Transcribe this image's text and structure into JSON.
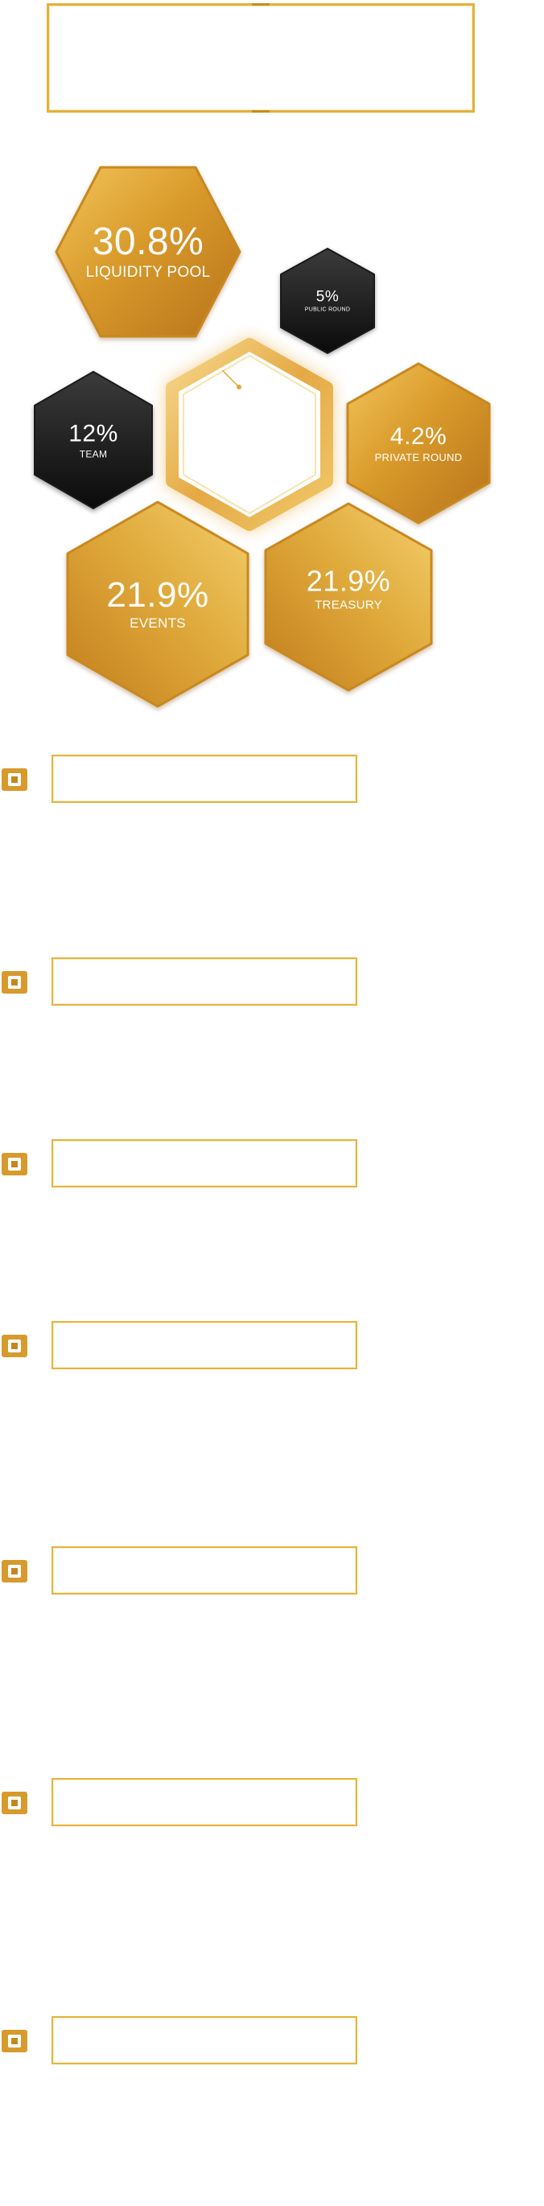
{
  "colors": {
    "gold_light": "#f1c253",
    "gold_mid": "#d99a2b",
    "gold_dark": "#b8731a",
    "dark_light": "#3a3a3a",
    "dark_dark": "#0d0d0d",
    "frame": "#e3b23c"
  },
  "allocation": [
    {
      "percent": "30.8%",
      "label": "LIQUIDITY POOL",
      "theme": "gold"
    },
    {
      "percent": "5%",
      "label": "PUBLIC ROUND",
      "theme": "dark"
    },
    {
      "percent": "12%",
      "label": "TEAM",
      "theme": "dark"
    },
    {
      "percent": "4.2%",
      "label": "PRIVATE ROUND",
      "theme": "gold"
    },
    {
      "percent": "21.9%",
      "label": "EVENTS",
      "theme": "gold"
    },
    {
      "percent": "21.9%",
      "label": "TREASURY",
      "theme": "gold"
    }
  ],
  "center": {
    "icon": "hexagon-ring-icon"
  },
  "bullets": [
    {
      "icon": "gold-square-icon"
    },
    {
      "icon": "gold-square-icon"
    },
    {
      "icon": "gold-square-icon"
    },
    {
      "icon": "gold-square-icon"
    },
    {
      "icon": "gold-square-icon"
    },
    {
      "icon": "gold-square-icon"
    },
    {
      "icon": "gold-square-icon"
    }
  ]
}
